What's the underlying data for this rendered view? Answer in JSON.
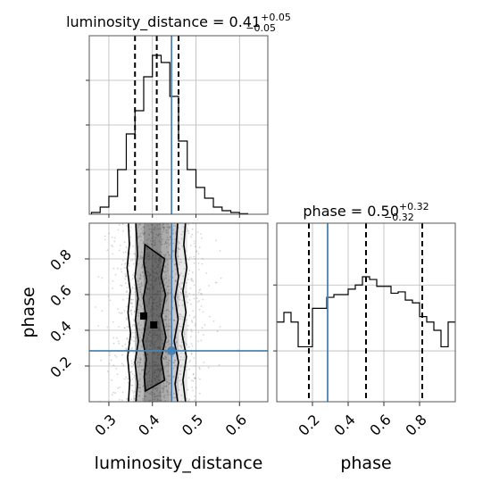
{
  "chart_data": {
    "type": "corner",
    "grid": true,
    "parameters": [
      "luminosity_distance",
      "phase"
    ],
    "truth": {
      "luminosity_distance": 0.444,
      "phase": 0.285
    },
    "panels": [
      {
        "id": "luminosity_distance_hist",
        "type": "histogram",
        "title_main": "luminosity_distance = 0.41",
        "title_sup": "+0.05",
        "title_sub": "−0.05",
        "xlim": [
          0.255,
          0.665
        ],
        "quantiles": [
          0.36,
          0.41,
          0.46
        ],
        "truth_line": 0.444,
        "bin_edges": [
          0.26,
          0.28,
          0.3,
          0.32,
          0.34,
          0.36,
          0.38,
          0.4,
          0.42,
          0.44,
          0.46,
          0.48,
          0.5,
          0.52,
          0.54,
          0.56,
          0.58,
          0.6,
          0.62
        ],
        "counts": [
          1,
          4,
          10,
          25,
          45,
          58,
          77,
          89,
          85,
          66,
          41,
          25,
          15,
          9,
          4,
          2,
          1,
          0.3
        ],
        "ylim": [
          0,
          100
        ]
      },
      {
        "id": "phase_hist",
        "type": "histogram",
        "title_main": "phase = 0.50",
        "title_sup": "+0.32",
        "title_sub": "−0.32",
        "xlim": [
          0.0,
          1.0
        ],
        "xticks": [
          0.2,
          0.4,
          0.6,
          0.8
        ],
        "xticklabels": [
          "0.2",
          "0.4",
          "0.6",
          "0.8"
        ],
        "xlabel": "phase",
        "quantiles": [
          0.18,
          0.5,
          0.815
        ],
        "truth_line": 0.285,
        "bin_edges": [
          0.0,
          0.04,
          0.08,
          0.12,
          0.16,
          0.2,
          0.24,
          0.28,
          0.32,
          0.36,
          0.4,
          0.44,
          0.48,
          0.52,
          0.56,
          0.6,
          0.64,
          0.68,
          0.72,
          0.76,
          0.8,
          0.84,
          0.88,
          0.92,
          0.96,
          1.0
        ],
        "counts": [
          58,
          65,
          58,
          40,
          40,
          68,
          68,
          76,
          78,
          78,
          82,
          85,
          91,
          89,
          84,
          84,
          79,
          80,
          74,
          72,
          62,
          58,
          52,
          40,
          58
        ],
        "ylim": [
          0,
          130
        ]
      },
      {
        "id": "joint_phase_vs_luminosity_distance",
        "type": "2d-density",
        "xlim": [
          0.255,
          0.665
        ],
        "ylim": [
          0.0,
          1.0
        ],
        "xticks": [
          0.3,
          0.4,
          0.5,
          0.6
        ],
        "xticklabels": [
          "0.3",
          "0.4",
          "0.5",
          "0.6"
        ],
        "yticks": [
          0.2,
          0.4,
          0.6,
          0.8
        ],
        "yticklabels": [
          "0.2",
          "0.4",
          "0.6",
          "0.8"
        ],
        "xlabel": "luminosity_distance",
        "ylabel": "phase",
        "truth_point": [
          0.444,
          0.285
        ],
        "density_columns": [
          {
            "x0": 0.36,
            "x1": 0.38,
            "level": 0.45
          },
          {
            "x0": 0.38,
            "x1": 0.4,
            "level": 0.7
          },
          {
            "x0": 0.4,
            "x1": 0.42,
            "level": 0.75
          },
          {
            "x0": 0.42,
            "x1": 0.44,
            "level": 0.55
          },
          {
            "x0": 0.44,
            "x1": 0.46,
            "level": 0.35
          },
          {
            "x0": 0.46,
            "x1": 0.48,
            "level": 0.15
          }
        ],
        "contours": [
          {
            "level": "outer",
            "left": [
              [
                0.345,
                0.0
              ],
              [
                0.348,
                0.12
              ],
              [
                0.343,
                0.25
              ],
              [
                0.35,
                0.38
              ],
              [
                0.344,
                0.5
              ],
              [
                0.349,
                0.62
              ],
              [
                0.342,
                0.75
              ],
              [
                0.347,
                0.88
              ],
              [
                0.345,
                1.0
              ]
            ],
            "right": [
              [
                0.476,
                0.0
              ],
              [
                0.47,
                0.12
              ],
              [
                0.478,
                0.25
              ],
              [
                0.468,
                0.38
              ],
              [
                0.477,
                0.5
              ],
              [
                0.47,
                0.62
              ],
              [
                0.479,
                0.75
              ],
              [
                0.472,
                0.88
              ],
              [
                0.476,
                1.0
              ]
            ]
          },
          {
            "level": "middle",
            "left": [
              [
                0.362,
                0.0
              ],
              [
                0.366,
                0.1
              ],
              [
                0.36,
                0.22
              ],
              [
                0.368,
                0.34
              ],
              [
                0.361,
                0.46
              ],
              [
                0.367,
                0.58
              ],
              [
                0.36,
                0.7
              ],
              [
                0.366,
                0.82
              ],
              [
                0.362,
                1.0
              ]
            ],
            "right": [
              [
                0.458,
                0.0
              ],
              [
                0.452,
                0.1
              ],
              [
                0.46,
                0.22
              ],
              [
                0.45,
                0.34
              ],
              [
                0.459,
                0.46
              ],
              [
                0.452,
                0.58
              ],
              [
                0.46,
                0.7
              ],
              [
                0.453,
                0.82
              ],
              [
                0.458,
                1.0
              ]
            ]
          },
          {
            "level": "inner",
            "left": [
              [
                0.384,
                0.06
              ],
              [
                0.381,
                0.14
              ],
              [
                0.386,
                0.24
              ],
              [
                0.378,
                0.34
              ],
              [
                0.386,
                0.46
              ],
              [
                0.379,
                0.58
              ],
              [
                0.387,
                0.68
              ],
              [
                0.38,
                0.78
              ],
              [
                0.383,
                0.88
              ]
            ],
            "right": [
              [
                0.384,
                0.06
              ],
              [
                0.428,
                0.12
              ],
              [
                0.42,
                0.24
              ],
              [
                0.431,
                0.36
              ],
              [
                0.421,
                0.48
              ],
              [
                0.43,
                0.6
              ],
              [
                0.42,
                0.7
              ],
              [
                0.428,
                0.8
              ],
              [
                0.383,
                0.88
              ]
            ]
          }
        ],
        "peak_points": [
          [
            0.38,
            0.48
          ],
          [
            0.403,
            0.43
          ]
        ]
      }
    ]
  }
}
